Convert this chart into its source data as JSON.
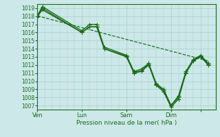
{
  "background_color": "#cce8e8",
  "grid_color": "#aacccc",
  "line_color": "#1a6b1a",
  "marker_color": "#1a6b1a",
  "xlabel": "Pression niveau de la mer( hPa )",
  "ylim": [
    1006.5,
    1019.5
  ],
  "yticks": [
    1007,
    1008,
    1009,
    1010,
    1011,
    1012,
    1013,
    1014,
    1015,
    1016,
    1017,
    1018,
    1019
  ],
  "xlim": [
    0,
    72
  ],
  "xtick_positions": [
    0,
    18,
    36,
    54,
    66
  ],
  "xtick_labels": [
    "Ven",
    "Lun",
    "Sam",
    "Dim",
    ""
  ],
  "series": [
    {
      "x": [
        0,
        2,
        18,
        21,
        24,
        27,
        36,
        39,
        42,
        45,
        48,
        51,
        54,
        57,
        60,
        63,
        66,
        69
      ],
      "y": [
        1018.1,
        1019.2,
        1016.2,
        1017.0,
        1017.0,
        1014.2,
        1013.2,
        1011.2,
        1011.5,
        1012.2,
        1009.7,
        1009.0,
        1007.0,
        1008.2,
        1011.2,
        1012.7,
        1013.2,
        1012.2
      ],
      "linewidth": 1.0,
      "marker": "+",
      "markersize": 4
    },
    {
      "x": [
        0,
        2,
        18,
        21,
        24,
        27,
        36,
        39,
        42,
        45,
        48,
        51,
        54,
        57,
        60,
        63,
        66,
        69
      ],
      "y": [
        1017.9,
        1019.0,
        1016.0,
        1016.7,
        1016.7,
        1014.0,
        1013.0,
        1011.0,
        1011.2,
        1012.0,
        1009.5,
        1008.7,
        1006.8,
        1007.8,
        1011.0,
        1012.5,
        1013.0,
        1012.0
      ],
      "linewidth": 1.0,
      "marker": "+",
      "markersize": 4
    },
    {
      "x": [
        0,
        2,
        18,
        21,
        24,
        27,
        36,
        39,
        42,
        45,
        48,
        51,
        54,
        57,
        60,
        63,
        66,
        69
      ],
      "y": [
        1018.0,
        1018.8,
        1016.0,
        1016.7,
        1016.7,
        1014.0,
        1013.1,
        1011.1,
        1011.3,
        1012.1,
        1009.6,
        1008.9,
        1007.0,
        1008.0,
        1011.1,
        1012.6,
        1013.1,
        1012.1
      ],
      "linewidth": 1.0,
      "marker": "+",
      "markersize": 4
    },
    {
      "x": [
        0,
        69
      ],
      "y": [
        1018.05,
        1012.5
      ],
      "linewidth": 0.9,
      "linestyle": "--",
      "marker": null,
      "markersize": 0
    }
  ]
}
